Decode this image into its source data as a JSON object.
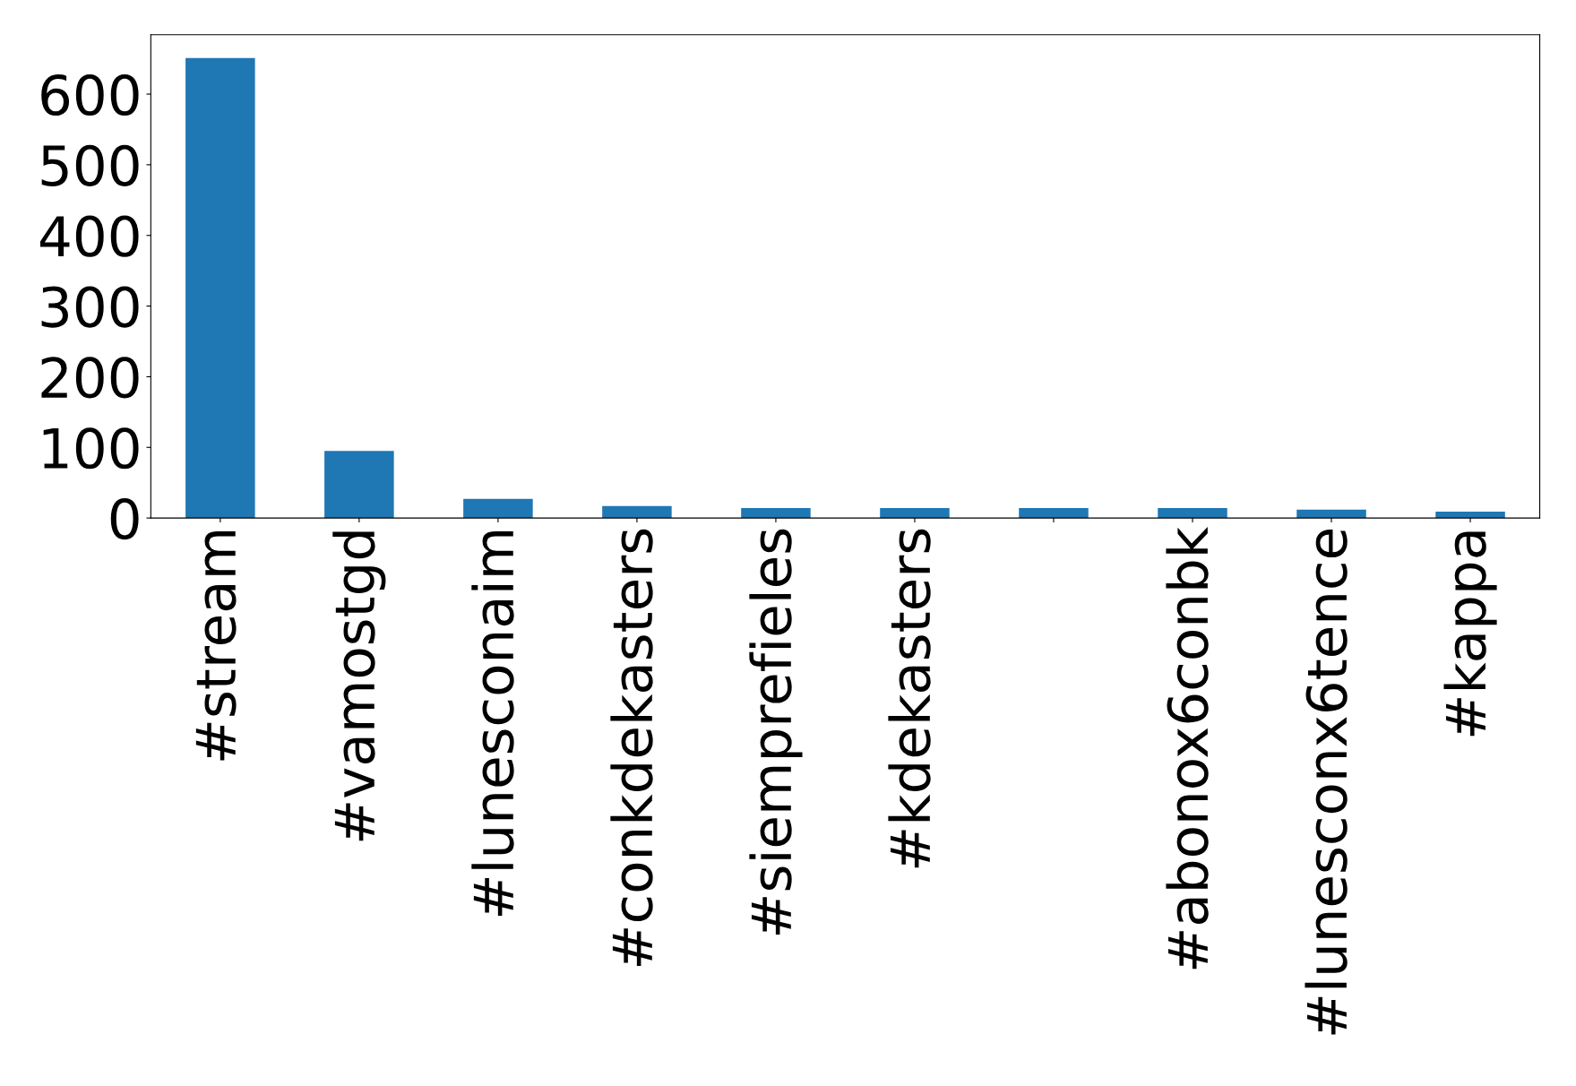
{
  "chart_data": {
    "type": "bar",
    "categories": [
      "#stream",
      "#vamostgd",
      "#lunesconaim",
      "#conkdekasters",
      "#siemprefieles",
      "#kdekasters",
      null,
      "#abonox6conbk",
      "#lunesconx6tence",
      "#kappa"
    ],
    "values": [
      651,
      95,
      27,
      17,
      14,
      14,
      14,
      14,
      12,
      9
    ],
    "color": "#1f77b4",
    "ylim": [
      0,
      684
    ],
    "yticks": [
      0,
      100,
      200,
      300,
      400,
      500,
      600
    ],
    "grid": false,
    "legend": false
  }
}
